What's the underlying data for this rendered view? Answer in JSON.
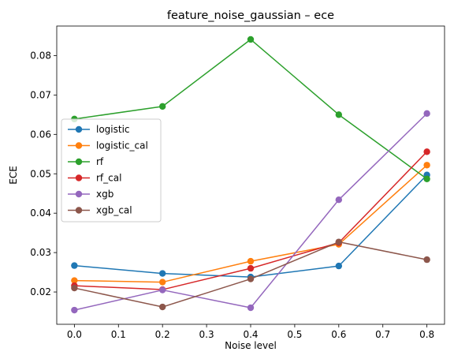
{
  "chart_data": {
    "type": "line",
    "title": "feature_noise_gaussian – ece",
    "xlabel": "Noise level",
    "ylabel": "ECE",
    "x": [
      0.0,
      0.2,
      0.4,
      0.6,
      0.8
    ],
    "xlim": [
      -0.04,
      0.84
    ],
    "ylim": [
      0.0118,
      0.0875
    ],
    "xticks": [
      "0.0",
      "0.1",
      "0.2",
      "0.3",
      "0.4",
      "0.5",
      "0.6",
      "0.7",
      "0.8"
    ],
    "yticks": [
      "0.02",
      "0.03",
      "0.04",
      "0.05",
      "0.06",
      "0.07",
      "0.08"
    ],
    "grid": false,
    "legend_position": "center-left",
    "series": [
      {
        "name": "logistic",
        "color": "#1f77b4",
        "values": [
          0.0267,
          0.0247,
          0.0238,
          0.0266,
          0.0497
        ]
      },
      {
        "name": "logistic_cal",
        "color": "#ff7f0e",
        "values": [
          0.0229,
          0.0225,
          0.0278,
          0.0321,
          0.0522
        ]
      },
      {
        "name": "rf",
        "color": "#2ca02c",
        "values": [
          0.0639,
          0.0671,
          0.0841,
          0.065,
          0.0487
        ]
      },
      {
        "name": "rf_cal",
        "color": "#d62728",
        "values": [
          0.0216,
          0.0206,
          0.026,
          0.0325,
          0.0556
        ]
      },
      {
        "name": "xgb",
        "color": "#9467bd",
        "values": [
          0.0154,
          0.0205,
          0.016,
          0.0434,
          0.0653
        ]
      },
      {
        "name": "xgb_cal",
        "color": "#8c564b",
        "values": [
          0.021,
          0.0162,
          0.0233,
          0.0327,
          0.0282
        ]
      }
    ]
  }
}
